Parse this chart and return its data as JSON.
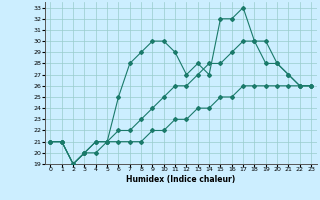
{
  "title": "",
  "xlabel": "Humidex (Indice chaleur)",
  "bg_color": "#cceeff",
  "grid_color": "#99cccc",
  "line_color": "#1a7a6a",
  "xlim": [
    -0.5,
    23.5
  ],
  "ylim": [
    19,
    33.5
  ],
  "yticks": [
    19,
    20,
    21,
    22,
    23,
    24,
    25,
    26,
    27,
    28,
    29,
    30,
    31,
    32,
    33
  ],
  "xticks": [
    0,
    1,
    2,
    3,
    4,
    5,
    6,
    7,
    8,
    9,
    10,
    11,
    12,
    13,
    14,
    15,
    16,
    17,
    18,
    19,
    20,
    21,
    22,
    23
  ],
  "line1_x": [
    0,
    1,
    2,
    3,
    4,
    5,
    6,
    7,
    8,
    9,
    10,
    11,
    12,
    13,
    14,
    15,
    16,
    17,
    18,
    19,
    20,
    21,
    22,
    23
  ],
  "line1_y": [
    21,
    21,
    19,
    20,
    21,
    21,
    25,
    28,
    29,
    30,
    30,
    29,
    27,
    28,
    27,
    32,
    32,
    33,
    30,
    30,
    28,
    27,
    26,
    26
  ],
  "line2_x": [
    0,
    1,
    2,
    3,
    4,
    5,
    6,
    7,
    8,
    9,
    10,
    11,
    12,
    13,
    14,
    15,
    16,
    17,
    18,
    19,
    20,
    21,
    22,
    23
  ],
  "line2_y": [
    21,
    21,
    19,
    20,
    21,
    21,
    22,
    22,
    23,
    24,
    25,
    26,
    26,
    27,
    28,
    28,
    29,
    30,
    30,
    28,
    28,
    27,
    26,
    26
  ],
  "line3_x": [
    0,
    1,
    2,
    3,
    4,
    5,
    6,
    7,
    8,
    9,
    10,
    11,
    12,
    13,
    14,
    15,
    16,
    17,
    18,
    19,
    20,
    21,
    22,
    23
  ],
  "line3_y": [
    21,
    21,
    19,
    20,
    20,
    21,
    21,
    21,
    21,
    22,
    22,
    23,
    23,
    24,
    24,
    25,
    25,
    26,
    26,
    26,
    26,
    26,
    26,
    26
  ]
}
